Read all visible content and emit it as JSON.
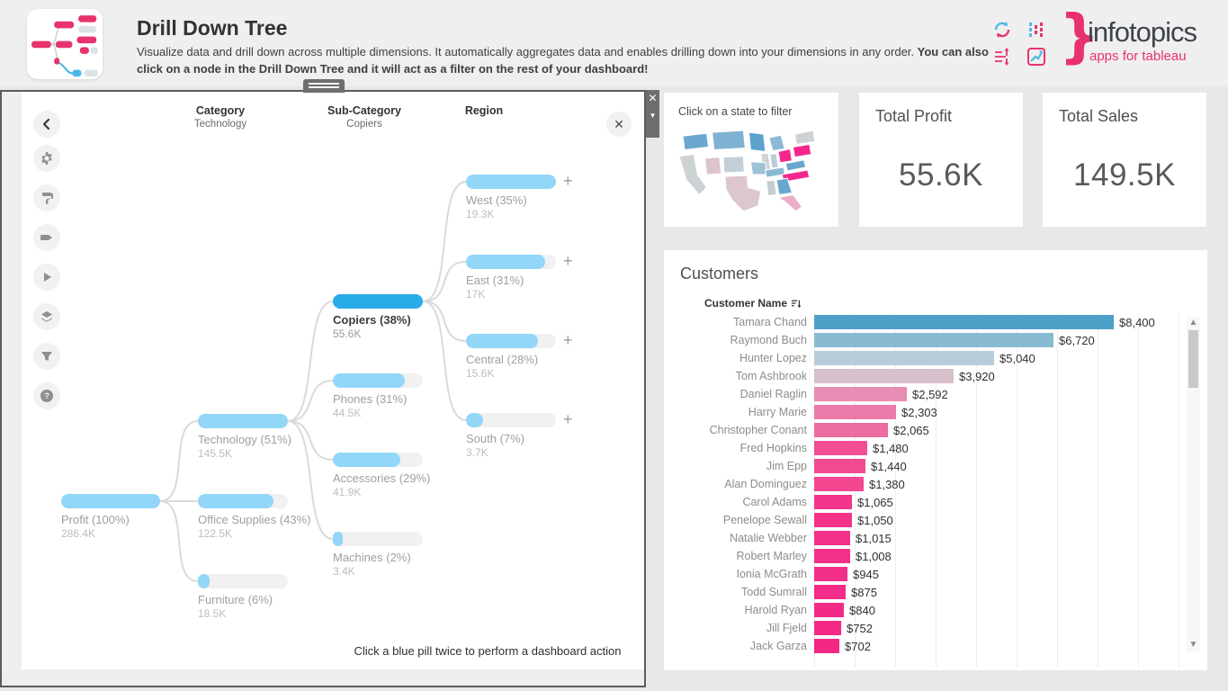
{
  "colors": {
    "brand_pink": "#e8326d",
    "tree_blue": "#92d6f8",
    "tree_blue_selected": "#29abe8",
    "bar_track": "#f1f1f1",
    "map_magenta": "#f5268b"
  },
  "header": {
    "title": "Drill Down Tree",
    "description_normal": "Visualize data and drill down across multiple dimensions. It automatically aggregates data and enables drilling down into your dimensions in any order. ",
    "description_bold": "You can also click on a node in the Drill Down Tree and it will act as a filter on the rest of your dashboard!",
    "logo_name": "infotopics",
    "logo_tagline": "apps for tableau",
    "logo_brace": "}"
  },
  "tree_panel": {
    "columns": [
      {
        "label": "Category",
        "sublabel": "Technology"
      },
      {
        "label": "Sub-Category",
        "sublabel": "Copiers"
      },
      {
        "label": "Region",
        "sublabel": ""
      }
    ],
    "toolbar_icons": [
      "back",
      "settings",
      "format",
      "label",
      "play",
      "layers",
      "filter",
      "help"
    ],
    "close_label": "✕",
    "footer_hint": "Click a blue pill twice to perform a dashboard action",
    "nodes": [
      {
        "id": "profit",
        "col": 0,
        "row": 0,
        "label": "Profit (100%)",
        "value": "286.4K",
        "fill": 1.0,
        "selected": false,
        "plus": false
      },
      {
        "id": "technology",
        "col": 1,
        "row": 0,
        "label": "Technology (51%)",
        "value": "145.5K",
        "fill": 1.0,
        "selected": false,
        "plus": false
      },
      {
        "id": "office",
        "col": 1,
        "row": 1,
        "label": "Office Supplies (43%)",
        "value": "122.5K",
        "fill": 0.84,
        "selected": false,
        "plus": false
      },
      {
        "id": "furniture",
        "col": 1,
        "row": 2,
        "label": "Furniture (6%)",
        "value": "18.5K",
        "fill": 0.13,
        "selected": false,
        "plus": false
      },
      {
        "id": "copiers",
        "col": 2,
        "row": 0,
        "label": "Copiers (38%)",
        "value": "55.6K",
        "fill": 1.0,
        "selected": true,
        "plus": false
      },
      {
        "id": "phones",
        "col": 2,
        "row": 1,
        "label": "Phones (31%)",
        "value": "44.5K",
        "fill": 0.8,
        "selected": false,
        "plus": false
      },
      {
        "id": "accessories",
        "col": 2,
        "row": 2,
        "label": "Accessories (29%)",
        "value": "41.9K",
        "fill": 0.75,
        "selected": false,
        "plus": false
      },
      {
        "id": "machines",
        "col": 2,
        "row": 3,
        "label": "Machines (2%)",
        "value": "3.4K",
        "fill": 0.08,
        "selected": false,
        "plus": false
      },
      {
        "id": "west",
        "col": 3,
        "row": 0,
        "label": "West (35%)",
        "value": "19.3K",
        "fill": 1.0,
        "selected": false,
        "plus": true
      },
      {
        "id": "east",
        "col": 3,
        "row": 1,
        "label": "East (31%)",
        "value": "17K",
        "fill": 0.88,
        "selected": false,
        "plus": true
      },
      {
        "id": "central",
        "col": 3,
        "row": 2,
        "label": "Central (28%)",
        "value": "15.6K",
        "fill": 0.8,
        "selected": false,
        "plus": true
      },
      {
        "id": "south",
        "col": 3,
        "row": 3,
        "label": "South (7%)",
        "value": "3.7K",
        "fill": 0.19,
        "selected": false,
        "plus": true
      }
    ],
    "links": [
      [
        "profit",
        "technology"
      ],
      [
        "profit",
        "office"
      ],
      [
        "profit",
        "furniture"
      ],
      [
        "technology",
        "copiers"
      ],
      [
        "technology",
        "phones"
      ],
      [
        "technology",
        "accessories"
      ],
      [
        "technology",
        "machines"
      ],
      [
        "copiers",
        "west"
      ],
      [
        "copiers",
        "east"
      ],
      [
        "copiers",
        "central"
      ],
      [
        "copiers",
        "south"
      ]
    ]
  },
  "map_card": {
    "hint": "Click on a state to filter",
    "states": [
      {
        "name": "washington",
        "color": "#6aa7ce"
      },
      {
        "name": "montana",
        "color": "#7fb1d2"
      },
      {
        "name": "california",
        "color": "#cdd2d5"
      },
      {
        "name": "utah",
        "color": "#dcc4cf"
      },
      {
        "name": "colorado",
        "color": "#c3cfd8"
      },
      {
        "name": "texas",
        "color": "#dcc6d0"
      },
      {
        "name": "minnesota",
        "color": "#5ba1cc"
      },
      {
        "name": "michigan",
        "color": "#8ab9d4"
      },
      {
        "name": "illinois",
        "color": "#cdd2d5"
      },
      {
        "name": "indiana",
        "color": "#b8cdd9"
      },
      {
        "name": "ohio",
        "color": "#f5268b"
      },
      {
        "name": "pennsylvania",
        "color": "#f5268b"
      },
      {
        "name": "new-york",
        "color": "#cdd2d5"
      },
      {
        "name": "missouri",
        "color": "#9fc2d6"
      },
      {
        "name": "tennessee",
        "color": "#8ab9d4"
      },
      {
        "name": "virginia",
        "color": "#6aa7ce"
      },
      {
        "name": "north-carolina",
        "color": "#f5268b"
      },
      {
        "name": "georgia",
        "color": "#6aa7ce"
      },
      {
        "name": "alabama",
        "color": "#c6cdd2"
      },
      {
        "name": "florida",
        "color": "#ecaec7"
      }
    ]
  },
  "kpis": [
    {
      "title": "Total Profit",
      "value": "55.6K"
    },
    {
      "title": "Total Sales",
      "value": "149.5K"
    }
  ],
  "customers": {
    "title": "Customers",
    "column_header": "Customer Name",
    "max_value": 8400,
    "rows": [
      {
        "name": "Tamara Chand",
        "value": 8400,
        "label": "$8,400",
        "color": "#4da0c8"
      },
      {
        "name": "Raymond Buch",
        "value": 6720,
        "label": "$6,720",
        "color": "#88bad1"
      },
      {
        "name": "Hunter Lopez",
        "value": 5040,
        "label": "$5,040",
        "color": "#b7ccd8"
      },
      {
        "name": "Tom Ashbrook",
        "value": 3920,
        "label": "$3,920",
        "color": "#d7c0cb"
      },
      {
        "name": "Daniel Raglin",
        "value": 2592,
        "label": "$2,592",
        "color": "#e78cb2"
      },
      {
        "name": "Harry Marie",
        "value": 2303,
        "label": "$2,303",
        "color": "#eb7aaa"
      },
      {
        "name": "Christopher Conant",
        "value": 2065,
        "label": "$2,065",
        "color": "#ed6ca2"
      },
      {
        "name": "Fred Hopkins",
        "value": 1480,
        "label": "$1,480",
        "color": "#f14e95"
      },
      {
        "name": "Jim Epp",
        "value": 1440,
        "label": "$1,440",
        "color": "#f14a93"
      },
      {
        "name": "Alan Dominguez",
        "value": 1380,
        "label": "$1,380",
        "color": "#f24691"
      },
      {
        "name": "Carol Adams",
        "value": 1065,
        "label": "$1,065",
        "color": "#f3348b"
      },
      {
        "name": "Penelope Sewall",
        "value": 1050,
        "label": "$1,050",
        "color": "#f3338a"
      },
      {
        "name": "Natalie Webber",
        "value": 1015,
        "label": "$1,015",
        "color": "#f33189"
      },
      {
        "name": "Robert Marley",
        "value": 1008,
        "label": "$1,008",
        "color": "#f33089"
      },
      {
        "name": "Ionia McGrath",
        "value": 945,
        "label": "$945",
        "color": "#f32e88"
      },
      {
        "name": "Todd Sumrall",
        "value": 875,
        "label": "$875",
        "color": "#f32c87"
      },
      {
        "name": "Harold Ryan",
        "value": 840,
        "label": "$840",
        "color": "#f32b86"
      },
      {
        "name": "Jill Fjeld",
        "value": 752,
        "label": "$752",
        "color": "#f32985"
      },
      {
        "name": "Jack Garza",
        "value": 702,
        "label": "$702",
        "color": "#f32784"
      }
    ]
  }
}
